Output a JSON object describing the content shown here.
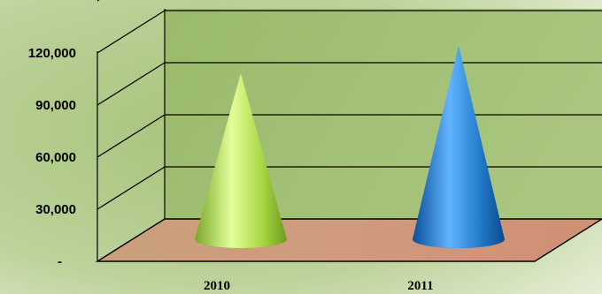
{
  "chart_data": {
    "type": "bar",
    "bar_shape": "cone",
    "three_d": true,
    "categories": [
      "2010",
      "2011"
    ],
    "values": [
      93000,
      109000
    ],
    "colors": [
      "#9fd23a",
      "#1f78c8"
    ],
    "ylim": [
      0,
      150000
    ],
    "yticks": [
      0,
      30000,
      60000,
      90000,
      120000
    ],
    "ytick_labels": [
      "-",
      "30,000",
      "60,000",
      "90,000",
      "120,000"
    ],
    "grid": true,
    "legend": "none",
    "title": "",
    "xlabel": "",
    "ylabel": ""
  }
}
